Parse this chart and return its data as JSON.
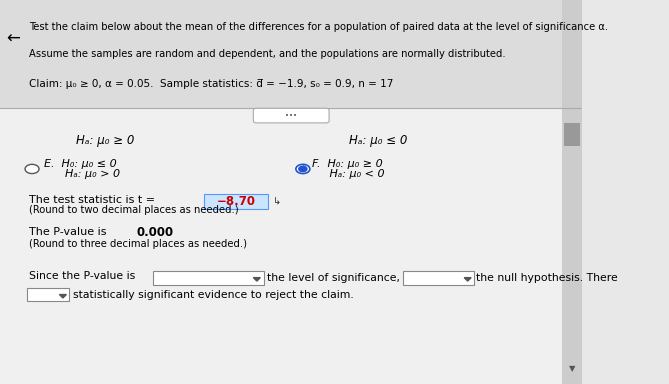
{
  "bg_color": "#f0f0f0",
  "content_bg": "#f5f5f5",
  "header_text1": "Test the claim below about the mean of the differences for a population of paired data at the level of significance α.",
  "header_text2": "Assume the samples are random and dependent, and the populations are normally distributed.",
  "claim_text": "Claim: μ₀ ≥ 0, α = 0.05.  Sample statistics: d̅ = −1.9, s₀ = 0.9, n = 17",
  "option_E_label": "E.",
  "option_E_H0": "H₀: μ₀ ≤ 0",
  "option_E_Ha": "Hₐ: μ₀ > 0",
  "option_F_H0": "H₀: μ₀ ≥ 0",
  "option_F_Ha": "Hₐ: μ₀ < 0",
  "top_left_Ha": "Hₐ: μ₀ ≥ 0",
  "top_right_Ha": "Hₐ: μ₀ ≤ 0",
  "test_stat_text": "The test statistic is t = ",
  "test_stat_value": "−8.70",
  "test_stat_note": "(Round to two decimal places as needed.)",
  "pvalue_text": "The P-value is ",
  "pvalue_value": "0.000",
  "pvalue_note": "(Round to three decimal places as needed.)",
  "since_text": "Since the P-value is",
  "the_level": "the level of significance,",
  "null_hyp": "the null hypothesis. There",
  "last_line": "statistically significant evidence to reject the claim.",
  "text_color": "#000000",
  "highlight_color": "#ff0000",
  "box_color": "#ffffff",
  "selected_color": "#2255cc"
}
